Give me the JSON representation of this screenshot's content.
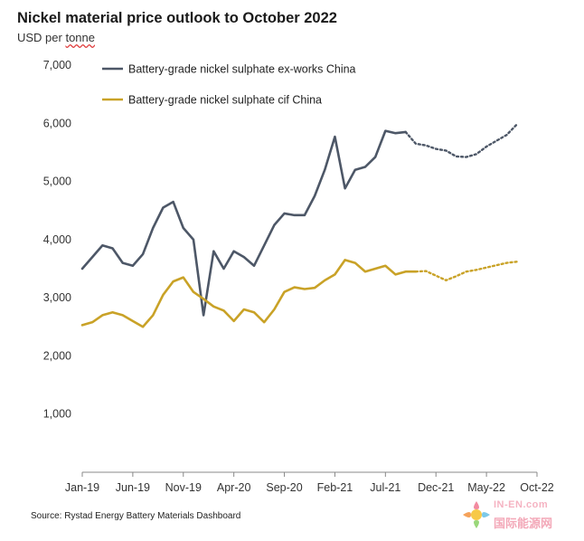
{
  "title": "Nickel material price outlook to October 2022",
  "subtitle_prefix": "USD per ",
  "subtitle_underlined": "tonne",
  "source": "Source: Rystad Energy Battery Materials Dashboard",
  "watermark": {
    "top": "IN-EN.com",
    "bottom": "国际能源网"
  },
  "chart_data": {
    "type": "line",
    "title": "Nickel material price outlook to October 2022",
    "ylabel": "USD per tonne",
    "ylim": [
      0,
      7000
    ],
    "yticks": [
      0,
      1000,
      2000,
      3000,
      4000,
      5000,
      6000,
      7000
    ],
    "ytick_labels": [
      "",
      "1,000",
      "2,000",
      "3,000",
      "4,000",
      "5,000",
      "6,000",
      "7,000"
    ],
    "xticks": [
      "Jan-19",
      "Jun-19",
      "Nov-19",
      "Apr-20",
      "Sep-20",
      "Feb-21",
      "Jul-21",
      "Dec-21",
      "May-22",
      "Oct-22"
    ],
    "x_start": "Jan-19",
    "x_end": "Oct-22",
    "legend_placement": "top-left",
    "grid": false,
    "series": [
      {
        "name": "Battery-grade nickel sulphate ex-works China",
        "color": "#4d5767",
        "values": [
          3500,
          3700,
          3900,
          3850,
          3600,
          3550,
          3750,
          4200,
          4550,
          4650,
          4200,
          4000,
          2700,
          3800,
          3500,
          3800,
          3700,
          3550,
          3900,
          4250,
          4450,
          4420,
          4420,
          4750,
          5200,
          5770,
          4880,
          5200,
          5250,
          5420,
          5870,
          5830,
          5850
        ],
        "forecast": [
          5850,
          5650,
          5620,
          5560,
          5530,
          5430,
          5420,
          5470,
          5600,
          5700,
          5800,
          5980
        ]
      },
      {
        "name": "Battery-grade nickel sulphate cif China",
        "color": "#c9a227",
        "values": [
          2530,
          2580,
          2700,
          2750,
          2700,
          2600,
          2500,
          2700,
          3050,
          3280,
          3350,
          3100,
          2980,
          2850,
          2780,
          2600,
          2800,
          2750,
          2580,
          2800,
          3100,
          3180,
          3150,
          3170,
          3300,
          3400,
          3650,
          3600,
          3450,
          3500,
          3550,
          3400,
          3450,
          3450
        ],
        "forecast": [
          3450,
          3460,
          3380,
          3300,
          3370,
          3450,
          3480,
          3520,
          3560,
          3600,
          3620
        ]
      }
    ]
  }
}
